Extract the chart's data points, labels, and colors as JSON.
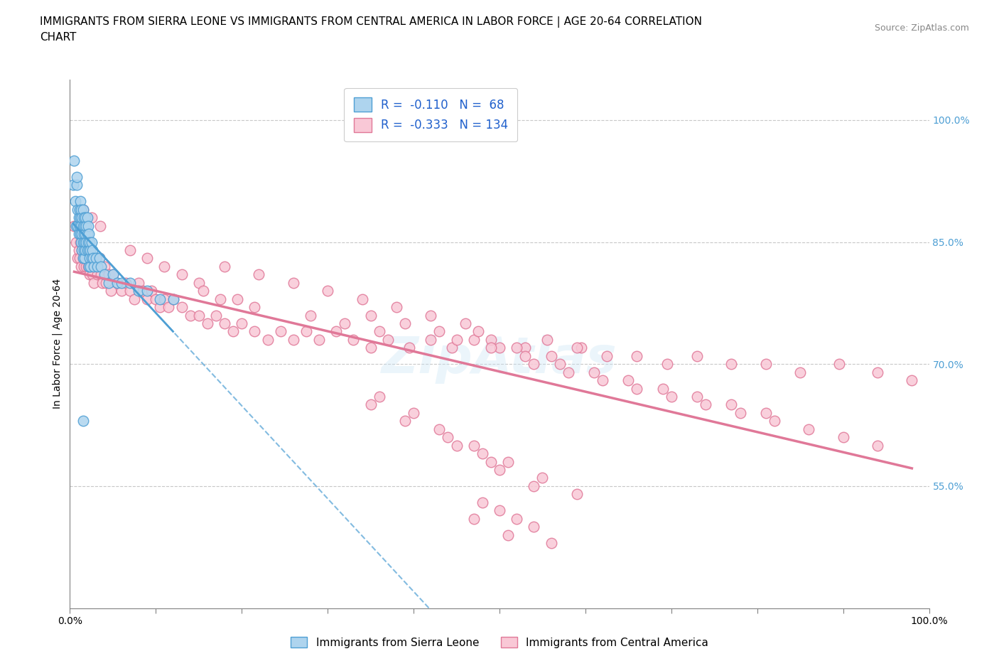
{
  "title": "IMMIGRANTS FROM SIERRA LEONE VS IMMIGRANTS FROM CENTRAL AMERICA IN LABOR FORCE | AGE 20-64 CORRELATION\nCHART",
  "source_text": "Source: ZipAtlas.com",
  "ylabel": "In Labor Force | Age 20-64",
  "xlim": [
    0.0,
    1.0
  ],
  "ylim": [
    0.4,
    1.05
  ],
  "yticks": [
    0.55,
    0.7,
    0.85,
    1.0
  ],
  "ytick_labels": [
    "55.0%",
    "70.0%",
    "85.0%",
    "100.0%"
  ],
  "xticks": [
    0.0,
    0.1,
    0.2,
    0.3,
    0.4,
    0.5,
    0.6,
    0.7,
    0.8,
    0.9,
    1.0
  ],
  "xtick_labels": [
    "0.0%",
    "",
    "",
    "",
    "",
    "",
    "",
    "",
    "",
    "",
    "100.0%"
  ],
  "sierra_leone_color": "#aed4ee",
  "sierra_leone_edge": "#4e9fd4",
  "central_america_color": "#f9c8d6",
  "central_america_edge": "#e07898",
  "trend_sierra_leone_color": "#4e9fd4",
  "trend_central_america_color": "#e07898",
  "R_sierra": -0.11,
  "N_sierra": 68,
  "R_central": -0.333,
  "N_central": 134,
  "legend_label_sierra": "Immigrants from Sierra Leone",
  "legend_label_central": "Immigrants from Central America",
  "watermark": "ZipAtlas",
  "background_color": "#ffffff",
  "grid_color": "#c8c8c8",
  "title_fontsize": 11,
  "label_fontsize": 10,
  "tick_fontsize": 10,
  "sierra_leone_x": [
    0.004,
    0.006,
    0.007,
    0.008,
    0.009,
    0.009,
    0.01,
    0.01,
    0.011,
    0.011,
    0.012,
    0.012,
    0.012,
    0.013,
    0.013,
    0.013,
    0.014,
    0.014,
    0.014,
    0.015,
    0.015,
    0.015,
    0.015,
    0.016,
    0.016,
    0.016,
    0.017,
    0.017,
    0.017,
    0.018,
    0.018,
    0.018,
    0.019,
    0.019,
    0.02,
    0.02,
    0.02,
    0.021,
    0.021,
    0.022,
    0.022,
    0.022,
    0.023,
    0.023,
    0.024,
    0.024,
    0.025,
    0.025,
    0.026,
    0.027,
    0.028,
    0.03,
    0.032,
    0.034,
    0.036,
    0.04,
    0.045,
    0.05,
    0.055,
    0.06,
    0.07,
    0.08,
    0.09,
    0.105,
    0.12,
    0.005,
    0.008,
    0.015
  ],
  "sierra_leone_y": [
    0.92,
    0.9,
    0.87,
    0.92,
    0.87,
    0.89,
    0.88,
    0.86,
    0.87,
    0.89,
    0.86,
    0.88,
    0.9,
    0.87,
    0.89,
    0.85,
    0.88,
    0.86,
    0.84,
    0.87,
    0.85,
    0.83,
    0.89,
    0.86,
    0.88,
    0.84,
    0.87,
    0.85,
    0.83,
    0.86,
    0.84,
    0.88,
    0.85,
    0.87,
    0.86,
    0.84,
    0.88,
    0.85,
    0.87,
    0.86,
    0.84,
    0.82,
    0.85,
    0.83,
    0.84,
    0.82,
    0.85,
    0.83,
    0.84,
    0.83,
    0.82,
    0.83,
    0.82,
    0.83,
    0.82,
    0.81,
    0.8,
    0.81,
    0.8,
    0.8,
    0.8,
    0.79,
    0.79,
    0.78,
    0.78,
    0.95,
    0.93,
    0.63
  ],
  "central_america_x": [
    0.005,
    0.007,
    0.009,
    0.01,
    0.011,
    0.012,
    0.013,
    0.014,
    0.015,
    0.016,
    0.017,
    0.018,
    0.019,
    0.02,
    0.021,
    0.022,
    0.023,
    0.024,
    0.025,
    0.026,
    0.027,
    0.028,
    0.03,
    0.032,
    0.034,
    0.036,
    0.038,
    0.04,
    0.042,
    0.045,
    0.048,
    0.05,
    0.055,
    0.06,
    0.065,
    0.07,
    0.075,
    0.08,
    0.085,
    0.09,
    0.095,
    0.1,
    0.105,
    0.11,
    0.115,
    0.12,
    0.13,
    0.14,
    0.15,
    0.16,
    0.17,
    0.18,
    0.19,
    0.2,
    0.215,
    0.23,
    0.245,
    0.26,
    0.275,
    0.29,
    0.31,
    0.33,
    0.35,
    0.37,
    0.395,
    0.42,
    0.445,
    0.47,
    0.5,
    0.53,
    0.56,
    0.595,
    0.625,
    0.66,
    0.695,
    0.73,
    0.77,
    0.81,
    0.85,
    0.895,
    0.94,
    0.98,
    0.34,
    0.38,
    0.42,
    0.46,
    0.18,
    0.22,
    0.26,
    0.3,
    0.07,
    0.09,
    0.11,
    0.13,
    0.15,
    0.035,
    0.025,
    0.015,
    0.49,
    0.52,
    0.475,
    0.555,
    0.59,
    0.35,
    0.39,
    0.43,
    0.155,
    0.195,
    0.45,
    0.49,
    0.53,
    0.57,
    0.61,
    0.65,
    0.69,
    0.73,
    0.77,
    0.81,
    0.54,
    0.58,
    0.62,
    0.66,
    0.7,
    0.74,
    0.78,
    0.82,
    0.86,
    0.9,
    0.94,
    0.28,
    0.32,
    0.36,
    0.175,
    0.215
  ],
  "central_america_y": [
    0.87,
    0.85,
    0.83,
    0.84,
    0.83,
    0.85,
    0.82,
    0.84,
    0.83,
    0.82,
    0.84,
    0.83,
    0.82,
    0.84,
    0.82,
    0.83,
    0.81,
    0.82,
    0.82,
    0.81,
    0.83,
    0.8,
    0.82,
    0.81,
    0.83,
    0.81,
    0.8,
    0.82,
    0.8,
    0.81,
    0.79,
    0.81,
    0.8,
    0.79,
    0.8,
    0.79,
    0.78,
    0.8,
    0.79,
    0.78,
    0.79,
    0.78,
    0.77,
    0.78,
    0.77,
    0.78,
    0.77,
    0.76,
    0.76,
    0.75,
    0.76,
    0.75,
    0.74,
    0.75,
    0.74,
    0.73,
    0.74,
    0.73,
    0.74,
    0.73,
    0.74,
    0.73,
    0.72,
    0.73,
    0.72,
    0.73,
    0.72,
    0.73,
    0.72,
    0.72,
    0.71,
    0.72,
    0.71,
    0.71,
    0.7,
    0.71,
    0.7,
    0.7,
    0.69,
    0.7,
    0.69,
    0.68,
    0.78,
    0.77,
    0.76,
    0.75,
    0.82,
    0.81,
    0.8,
    0.79,
    0.84,
    0.83,
    0.82,
    0.81,
    0.8,
    0.87,
    0.88,
    0.89,
    0.73,
    0.72,
    0.74,
    0.73,
    0.72,
    0.76,
    0.75,
    0.74,
    0.79,
    0.78,
    0.73,
    0.72,
    0.71,
    0.7,
    0.69,
    0.68,
    0.67,
    0.66,
    0.65,
    0.64,
    0.7,
    0.69,
    0.68,
    0.67,
    0.66,
    0.65,
    0.64,
    0.63,
    0.62,
    0.61,
    0.6,
    0.76,
    0.75,
    0.74,
    0.78,
    0.77
  ],
  "ca_low_x": [
    0.35,
    0.39,
    0.45,
    0.49,
    0.36,
    0.4,
    0.5,
    0.54,
    0.43,
    0.47,
    0.51,
    0.55,
    0.59,
    0.44,
    0.48
  ],
  "ca_low_y": [
    0.65,
    0.63,
    0.6,
    0.58,
    0.66,
    0.64,
    0.57,
    0.55,
    0.62,
    0.6,
    0.58,
    0.56,
    0.54,
    0.61,
    0.59
  ],
  "ca_very_low_x": [
    0.47,
    0.51,
    0.5,
    0.54,
    0.56,
    0.48,
    0.52
  ],
  "ca_very_low_y": [
    0.51,
    0.49,
    0.52,
    0.5,
    0.48,
    0.53,
    0.51
  ]
}
